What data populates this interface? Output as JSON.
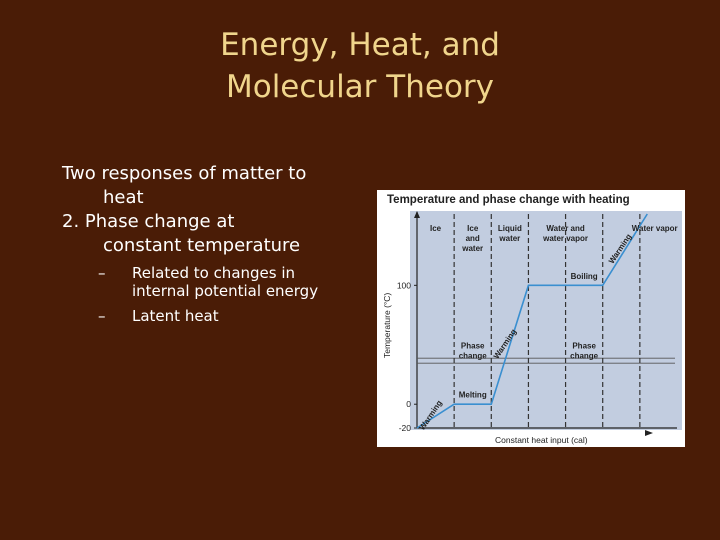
{
  "slide": {
    "title_line1": "Energy, Heat, and",
    "title_line2": "Molecular Theory",
    "intro_line1": "Two responses of matter to",
    "intro_line2": "heat",
    "item_line1": "2.  Phase change at",
    "item_line2": "constant temperature",
    "bullets": [
      {
        "dash": "–",
        "line1": "Related to changes in",
        "line2": "internal potential energy"
      },
      {
        "dash": "–",
        "line1": "Latent heat",
        "line2": ""
      }
    ]
  },
  "chart_data": {
    "type": "line",
    "title": "Temperature and phase change with heating",
    "xlabel": "Constant heat input (cal)",
    "ylabel": "Temperature (°C)",
    "y_ticks": [
      -20,
      0,
      100
    ],
    "y_tick_labels": [
      "-20",
      "0",
      "100"
    ],
    "ylim": [
      -20,
      160
    ],
    "xlim": [
      0,
      7
    ],
    "series": [
      {
        "x": [
          0,
          1,
          2,
          3,
          4,
          5,
          6.2
        ],
        "y": [
          -20,
          0,
          0,
          100,
          100,
          100,
          160
        ]
      }
    ],
    "regions": [
      {
        "label_lines": [
          "Ice"
        ]
      },
      {
        "label_lines": [
          "Ice",
          "and",
          "water"
        ]
      },
      {
        "label_lines": [
          "Liquid",
          "water"
        ]
      },
      {
        "label_lines": [
          "Water and",
          "water vapor"
        ]
      },
      {
        "label_lines": [
          "Water vapor"
        ]
      }
    ],
    "annotations": [
      {
        "text": "Warming",
        "x": 0.5,
        "y": -10
      },
      {
        "text": "Melting",
        "x": 1.5,
        "y": 3
      },
      {
        "text": "Warming",
        "x": 2.5,
        "y": 50
      },
      {
        "text": "Boiling",
        "x": 4.5,
        "y": 103
      },
      {
        "text": "Warming",
        "x": 5.6,
        "y": 130
      },
      {
        "text_lines": [
          "Phase",
          "change"
        ],
        "x": 1.5,
        "y": 47
      },
      {
        "text_lines": [
          "Phase",
          "change"
        ],
        "x": 4.5,
        "y": 47
      }
    ],
    "grid": false,
    "colors": {
      "background": "#c2cde0",
      "line": "#3a8fd0",
      "dashes": "#333333"
    }
  }
}
